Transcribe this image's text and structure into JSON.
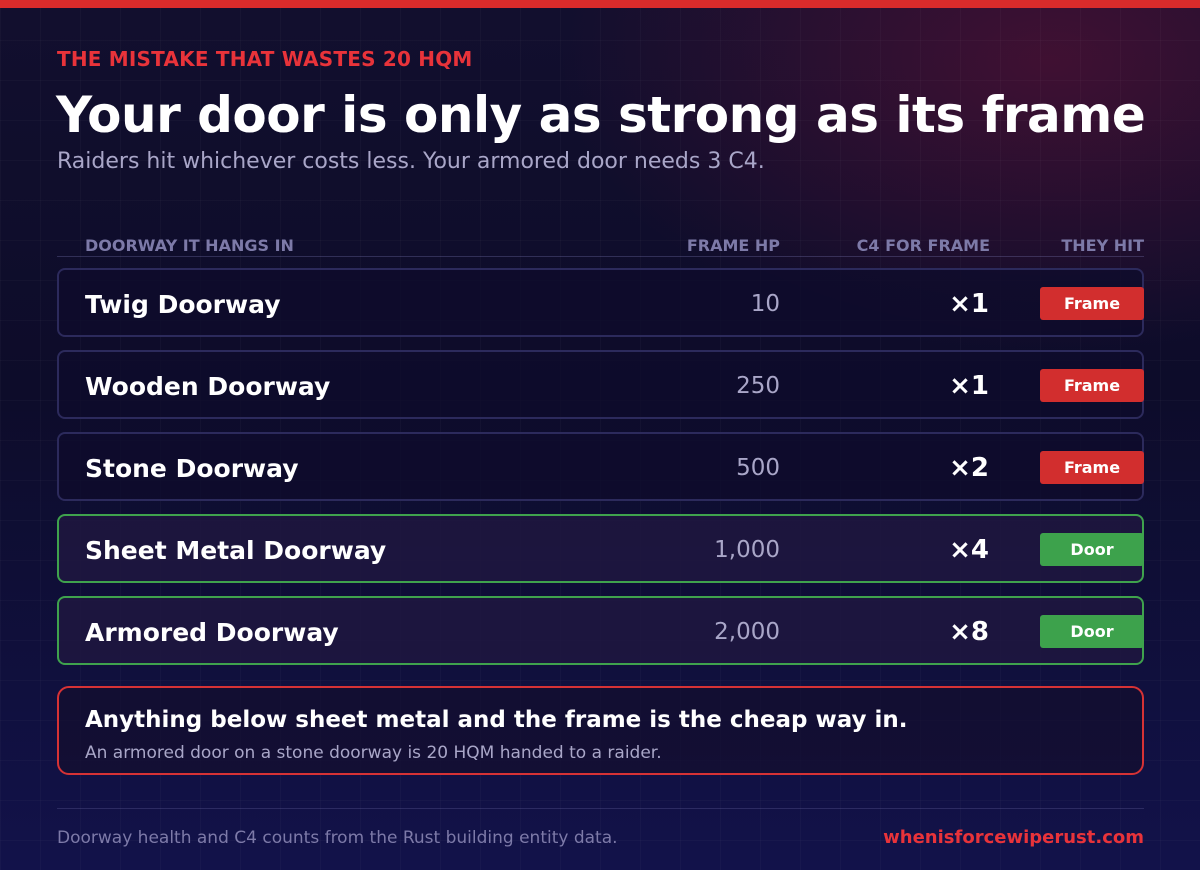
{
  "eyebrow": "THE MISTAKE THAT WASTES 20 HQM",
  "headline": "Your door is only as strong as its frame",
  "subtitle": "Raiders hit whichever costs less. Your armored door needs 3 C4.",
  "table": {
    "headers": {
      "name": "DOORWAY IT HANGS IN",
      "hp": "FRAME HP",
      "c4": "C4 FOR FRAME",
      "hit": "THEY HIT"
    },
    "rows": [
      {
        "name": "Twig Doorway",
        "hp": "10",
        "c4": "×1",
        "hit": "Frame",
        "status": "frame"
      },
      {
        "name": "Wooden Doorway",
        "hp": "250",
        "c4": "×1",
        "hit": "Frame",
        "status": "frame"
      },
      {
        "name": "Stone Doorway",
        "hp": "500",
        "c4": "×2",
        "hit": "Frame",
        "status": "frame"
      },
      {
        "name": "Sheet Metal Doorway",
        "hp": "1,000",
        "c4": "×4",
        "hit": "Door",
        "status": "door"
      },
      {
        "name": "Armored Doorway",
        "hp": "2,000",
        "c4": "×8",
        "hit": "Door",
        "status": "door"
      }
    ]
  },
  "callout": {
    "title": "Anything below sheet metal and the frame is the cheap way in.",
    "body": "An armored door on a stone doorway is 20 HQM handed to a raider."
  },
  "footer": {
    "note": "Doorway health and C4 counts from the Rust building entity data.",
    "site": "whenisforcewiperust.com"
  },
  "colors": {
    "accent_red": "#d92b2b",
    "frame_badge": "#d22e2e",
    "door_badge": "#3da24c",
    "background": "#0d0c2a"
  }
}
